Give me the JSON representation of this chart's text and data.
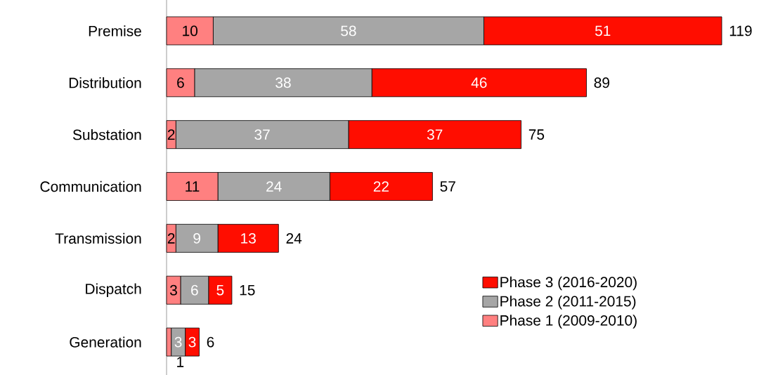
{
  "chart_data": {
    "type": "bar",
    "orientation": "horizontal",
    "stacked": true,
    "data_labels": true,
    "legend": "bottom right",
    "categories": [
      "Premise",
      "Distribution",
      "Substation",
      "Communication",
      "Transmission",
      "Dispatch",
      "Generation"
    ],
    "series": [
      {
        "name": "Phase 1 (2009-2010)",
        "color": "#ff8080",
        "values": [
          10,
          6,
          2,
          11,
          2,
          3,
          1
        ]
      },
      {
        "name": "Phase 2 (2011-2015)",
        "color": "#a6a6a6",
        "values": [
          58,
          38,
          37,
          24,
          9,
          6,
          3
        ]
      },
      {
        "name": "Phase 3 (2016-2020)",
        "color": "#ff0d00",
        "values": [
          51,
          46,
          37,
          22,
          13,
          5,
          3
        ]
      }
    ],
    "totals": [
      "119",
      "89",
      "75",
      "57",
      "24",
      "15",
      "6"
    ]
  }
}
